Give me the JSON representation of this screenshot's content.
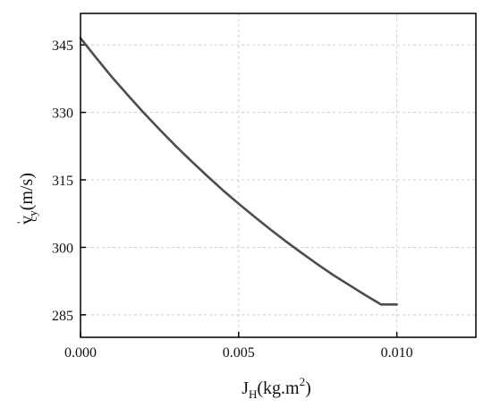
{
  "chart_data": {
    "type": "line",
    "title": "",
    "xlabel": {
      "base": "J",
      "sub": "H",
      "unit_prefix": "(kg.m",
      "unit_sup": "2",
      "unit_suffix": ")"
    },
    "ylabel": {
      "base": "v",
      "prime": "'",
      "sub": "cy",
      "unit": "(m/s)"
    },
    "xlim": [
      0.0,
      0.0125
    ],
    "ylim": [
      280,
      352
    ],
    "x_ticks": [
      0.0,
      0.005,
      0.01
    ],
    "x_tick_labels": [
      "0.000",
      "0.005",
      "0.010"
    ],
    "y_ticks": [
      285,
      300,
      315,
      330,
      345
    ],
    "y_tick_labels": [
      "285",
      "300",
      "315",
      "330",
      "345"
    ],
    "grid": true,
    "series": [
      {
        "color": "#4d4d4d",
        "x": [
          0.0,
          0.0005,
          0.001,
          0.0015,
          0.002,
          0.0025,
          0.003,
          0.0035,
          0.004,
          0.0045,
          0.005,
          0.0055,
          0.006,
          0.0065,
          0.007,
          0.0075,
          0.008,
          0.0085,
          0.009,
          0.0095,
          0.01
        ],
        "y": [
          346.5,
          342.1,
          337.8,
          333.8,
          329.9,
          326.2,
          322.6,
          319.2,
          315.9,
          312.7,
          309.7,
          306.8,
          304.0,
          301.3,
          298.7,
          296.2,
          293.8,
          291.6,
          289.4,
          287.3,
          287.3
        ]
      }
    ]
  }
}
